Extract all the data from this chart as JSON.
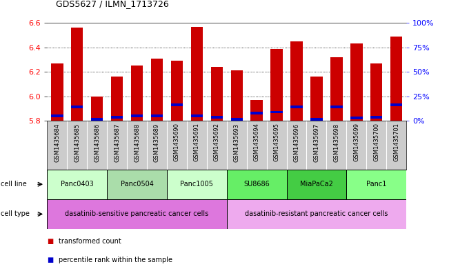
{
  "title": "GDS5627 / ILMN_1713726",
  "samples": [
    "GSM1435684",
    "GSM1435685",
    "GSM1435686",
    "GSM1435687",
    "GSM1435688",
    "GSM1435689",
    "GSM1435690",
    "GSM1435691",
    "GSM1435692",
    "GSM1435693",
    "GSM1435694",
    "GSM1435695",
    "GSM1435696",
    "GSM1435697",
    "GSM1435698",
    "GSM1435699",
    "GSM1435700",
    "GSM1435701"
  ],
  "bar_values": [
    6.27,
    6.56,
    6.0,
    6.16,
    6.25,
    6.31,
    6.29,
    6.57,
    6.24,
    6.21,
    5.97,
    6.39,
    6.45,
    6.16,
    6.32,
    6.43,
    6.27,
    6.49
  ],
  "percentile_values": [
    5.84,
    5.91,
    5.81,
    5.83,
    5.84,
    5.84,
    5.93,
    5.84,
    5.83,
    5.81,
    5.86,
    5.87,
    5.91,
    5.81,
    5.91,
    5.82,
    5.83,
    5.93
  ],
  "bar_color": "#cc0000",
  "percentile_color": "#0000cc",
  "ymin": 5.8,
  "ymax": 6.6,
  "yticks": [
    5.8,
    6.0,
    6.2,
    6.4,
    6.6
  ],
  "gridlines": [
    6.0,
    6.2,
    6.4
  ],
  "right_ytick_pcts": [
    0,
    25,
    50,
    75,
    100
  ],
  "right_ytick_labels": [
    "0%",
    "25%",
    "50%",
    "75%",
    "100%"
  ],
  "cell_lines": [
    {
      "label": "Panc0403",
      "start": 0,
      "end": 2,
      "color": "#ccffcc"
    },
    {
      "label": "Panc0504",
      "start": 3,
      "end": 5,
      "color": "#aaddaa"
    },
    {
      "label": "Panc1005",
      "start": 6,
      "end": 8,
      "color": "#ccffcc"
    },
    {
      "label": "SU8686",
      "start": 9,
      "end": 11,
      "color": "#66ee66"
    },
    {
      "label": "MiaPaCa2",
      "start": 12,
      "end": 14,
      "color": "#44cc44"
    },
    {
      "label": "Panc1",
      "start": 15,
      "end": 17,
      "color": "#88ff88"
    }
  ],
  "cell_types": [
    {
      "label": "dasatinib-sensitive pancreatic cancer cells",
      "start": 0,
      "end": 8,
      "color": "#dd77dd"
    },
    {
      "label": "dasatinib-resistant pancreatic cancer cells",
      "start": 9,
      "end": 17,
      "color": "#eeaaee"
    }
  ],
  "cell_line_label": "cell line",
  "cell_type_label": "cell type",
  "legend_items": [
    {
      "label": "transformed count",
      "color": "#cc0000"
    },
    {
      "label": "percentile rank within the sample",
      "color": "#0000cc"
    }
  ],
  "pct_bar_height": 0.022,
  "bar_width": 0.6,
  "xtick_bg_color": "#cccccc"
}
